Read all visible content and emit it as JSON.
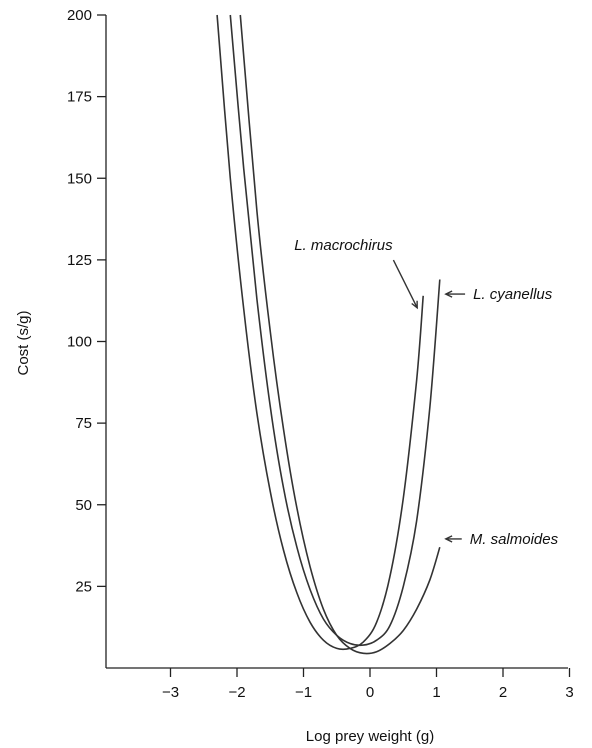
{
  "chart_data": {
    "type": "line",
    "xlabel": "Log prey weight (g)",
    "ylabel": "Cost (s/g)",
    "xlim": [
      -4,
      3
    ],
    "ylim": [
      0,
      200
    ],
    "x_ticks": [
      -3,
      -2,
      -1,
      0,
      1,
      2,
      3
    ],
    "x_tick_labels": [
      "−3",
      "−2",
      "−1",
      "0",
      "1",
      "2",
      "3"
    ],
    "y_ticks": [
      25,
      50,
      75,
      100,
      125,
      150,
      175,
      200
    ],
    "y_tick_labels": [
      "25",
      "50",
      "75",
      "100",
      "125",
      "150",
      "175",
      "200"
    ],
    "grid": false,
    "legend": "none",
    "series": [
      {
        "name": "L. macrochirus",
        "x": [
          -2.3,
          -2.1,
          -1.9,
          -1.7,
          -1.5,
          -1.3,
          -1.1,
          -0.9,
          -0.7,
          -0.5,
          -0.3,
          -0.1,
          0.1,
          0.3,
          0.5,
          0.7,
          0.8
        ],
        "y": [
          200,
          150,
          110,
          78,
          54,
          36,
          23,
          14,
          8.5,
          6,
          6,
          8,
          14,
          28,
          52,
          88,
          114
        ]
      },
      {
        "name": "L. cyanellus",
        "x": [
          -2.1,
          -1.9,
          -1.7,
          -1.5,
          -1.3,
          -1.1,
          -0.9,
          -0.7,
          -0.5,
          -0.3,
          -0.1,
          0.1,
          0.3,
          0.5,
          0.7,
          0.9,
          1.05
        ],
        "y": [
          200,
          153,
          113,
          80,
          55,
          37,
          24,
          15,
          10,
          7.5,
          7,
          8.5,
          13,
          25,
          45,
          80,
          119
        ]
      },
      {
        "name": "M. salmoides",
        "x": [
          -1.95,
          -1.7,
          -1.5,
          -1.3,
          -1.1,
          -0.9,
          -0.7,
          -0.5,
          -0.3,
          -0.1,
          0.1,
          0.3,
          0.5,
          0.7,
          0.9,
          1.05
        ],
        "y": [
          200,
          140,
          103,
          73,
          49,
          31,
          18,
          10,
          6,
          4.5,
          5,
          7.5,
          11.5,
          18,
          27,
          37
        ]
      }
    ],
    "annotations": [
      {
        "text": "L. macrochirus",
        "series": 0,
        "x": -0.4,
        "y": 128
      },
      {
        "text": "L. cyanellus",
        "series": 1,
        "x": 1.55,
        "y": 113
      },
      {
        "text": "M. salmoides",
        "series": 2,
        "x": 1.5,
        "y": 38
      }
    ]
  }
}
